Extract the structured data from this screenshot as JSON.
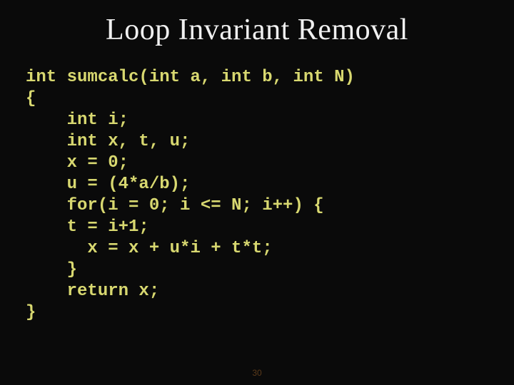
{
  "slide": {
    "title": "Loop Invariant Removal",
    "page_number": "30",
    "background_color": "#0a0a0a",
    "title_color": "#f0f0f0",
    "title_fontsize": 42,
    "title_font": "Times New Roman",
    "code_color": "#d8d870",
    "code_fontsize": 24,
    "code_font": "Courier New",
    "pagenum_color": "#5a3a1a"
  },
  "code": {
    "l01": "int sumcalc(int a, int b, int N)",
    "l02": "{",
    "l03": "    int i;",
    "l04": "    int x, t, u;",
    "l05": "    x = 0;",
    "l06": "    u = (4*a/b);",
    "l07": "    for(i = 0; i <= N; i++) {",
    "l08": "    t = i+1;",
    "l09": "      x = x + u*i + t*t;",
    "l10": "    }",
    "l11": "    return x;",
    "l12": "}"
  }
}
